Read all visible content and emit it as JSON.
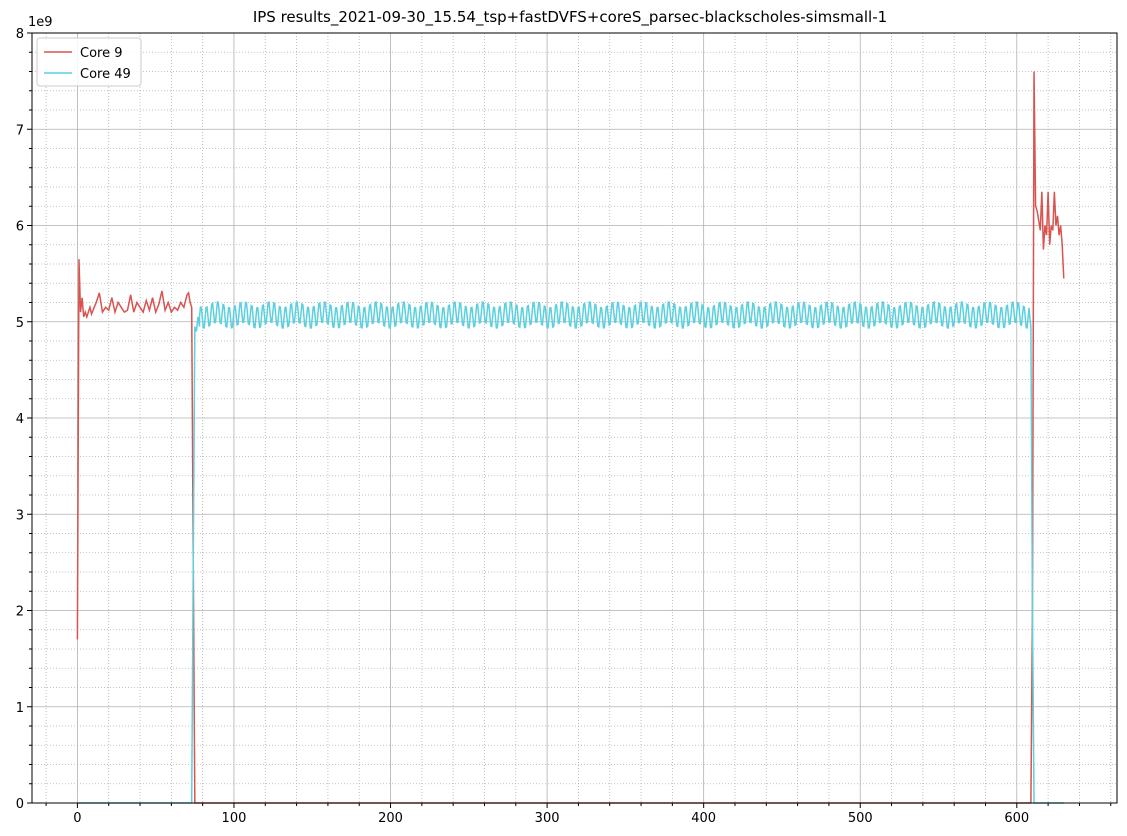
{
  "chart_data": {
    "type": "line",
    "title": "IPS results_2021-09-30_15.54_tsp+fastDVFS+coreS_parsec-blackscholes-simsmall-1",
    "xlabel": "",
    "ylabel": "",
    "y_offset_label": "1e9",
    "xlim": [
      -29,
      664
    ],
    "ylim": [
      0,
      8
    ],
    "x_ticks": [
      0,
      100,
      200,
      300,
      400,
      500,
      600
    ],
    "x_tick_labels": [
      "0",
      "100",
      "200",
      "300",
      "400",
      "500",
      "600"
    ],
    "y_ticks": [
      0,
      1,
      2,
      3,
      4,
      5,
      6,
      7,
      8
    ],
    "y_tick_labels": [
      "0",
      "1",
      "2",
      "3",
      "4",
      "5",
      "6",
      "7",
      "8"
    ],
    "grid": "major solid, minor dotted",
    "legend_position": "top-left",
    "series": [
      {
        "name": "Core 9",
        "color": "#d9534f",
        "x": [
          0,
          1,
          2,
          3,
          4,
          5,
          6,
          7,
          8,
          9,
          10,
          12,
          14,
          16,
          18,
          20,
          22,
          24,
          26,
          28,
          30,
          32,
          34,
          36,
          38,
          40,
          42,
          44,
          46,
          48,
          50,
          52,
          54,
          56,
          58,
          60,
          62,
          64,
          66,
          68,
          70,
          71,
          72,
          73,
          74,
          75,
          100,
          200,
          300,
          400,
          500,
          600,
          609,
          610,
          611,
          612,
          613,
          614,
          615,
          616,
          617,
          618,
          619,
          620,
          621,
          622,
          623,
          624,
          625,
          626,
          627,
          628,
          629,
          630
        ],
        "y": [
          1.7,
          5.65,
          5.1,
          5.25,
          5.05,
          5.1,
          5.05,
          5.1,
          5.15,
          5.08,
          5.12,
          5.2,
          5.3,
          5.1,
          5.15,
          5.12,
          5.25,
          5.1,
          5.2,
          5.15,
          5.1,
          5.12,
          5.28,
          5.1,
          5.2,
          5.15,
          5.1,
          5.22,
          5.12,
          5.25,
          5.1,
          5.18,
          5.32,
          5.12,
          5.2,
          5.1,
          5.15,
          5.12,
          5.2,
          5.15,
          5.28,
          5.3,
          5.2,
          5.15,
          2.5,
          0,
          0,
          0,
          0,
          0,
          0,
          0,
          0,
          2.0,
          7.6,
          6.2,
          6.15,
          6.05,
          5.95,
          6.35,
          5.75,
          6.0,
          5.9,
          6.35,
          5.8,
          6.0,
          5.95,
          6.35,
          6.0,
          6.1,
          5.9,
          6.0,
          5.8,
          5.45
        ]
      },
      {
        "name": "Core 49",
        "color": "#5bd0de",
        "x_start": 75,
        "x_end": 610,
        "pre": {
          "x": [
            0,
            73
          ],
          "y": [
            0,
            0
          ]
        },
        "ramp": {
          "x": [
            73,
            74,
            75,
            76,
            77,
            78
          ],
          "y": [
            0,
            2.5,
            4.95,
            4.9,
            5.05,
            4.95
          ]
        },
        "steady": {
          "x_from": 78,
          "x_to": 608,
          "mean": 5.07,
          "amplitude": 0.12,
          "period": 3.6
        },
        "fall": {
          "x": [
            608,
            609,
            610,
            611,
            630
          ],
          "y": [
            5.1,
            4.95,
            2.0,
            0,
            0
          ]
        }
      }
    ]
  }
}
